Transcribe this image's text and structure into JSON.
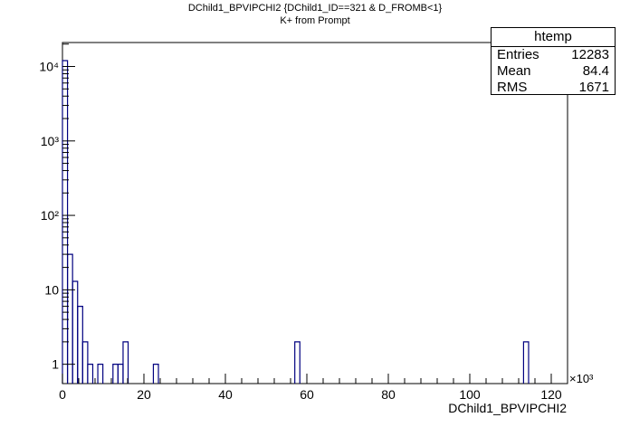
{
  "chart_data": {
    "type": "histogram",
    "title": "DChild1_BPVIPCHI2 {DChild1_ID==321 & D_FROMB<1}",
    "subtitle": "K+ from Prompt",
    "xlabel": "DChild1_BPVIPCHI2",
    "x_multiplier_label": "×10³",
    "x_range": [
      0,
      124
    ],
    "y_scale": "log",
    "y_range": [
      0.55,
      21000
    ],
    "x_ticks": [
      0,
      20,
      40,
      60,
      80,
      100,
      120
    ],
    "y_ticks": [
      {
        "value": 1,
        "label": "1"
      },
      {
        "value": 10,
        "label": "10"
      },
      {
        "value": 100,
        "label": "10²"
      },
      {
        "value": 1000,
        "label": "10³"
      },
      {
        "value": 10000,
        "label": "10⁴"
      }
    ],
    "bin_width": 1.24,
    "bins": [
      {
        "x": 0,
        "count": 12000
      },
      {
        "x": 1.24,
        "count": 30
      },
      {
        "x": 2.48,
        "count": 13
      },
      {
        "x": 3.72,
        "count": 6
      },
      {
        "x": 4.96,
        "count": 2
      },
      {
        "x": 6.2,
        "count": 1
      },
      {
        "x": 8.68,
        "count": 1
      },
      {
        "x": 12.4,
        "count": 1
      },
      {
        "x": 13.64,
        "count": 1
      },
      {
        "x": 14.88,
        "count": 2
      },
      {
        "x": 22.32,
        "count": 1
      },
      {
        "x": 57.04,
        "count": 2
      },
      {
        "x": 113.2,
        "count": 2
      }
    ],
    "stats": {
      "name": "htemp",
      "entries_label": "Entries",
      "entries": "12283",
      "mean_label": "Mean",
      "mean": "84.4",
      "rms_label": "RMS",
      "rms": "1671"
    },
    "line_color": "#000080"
  }
}
